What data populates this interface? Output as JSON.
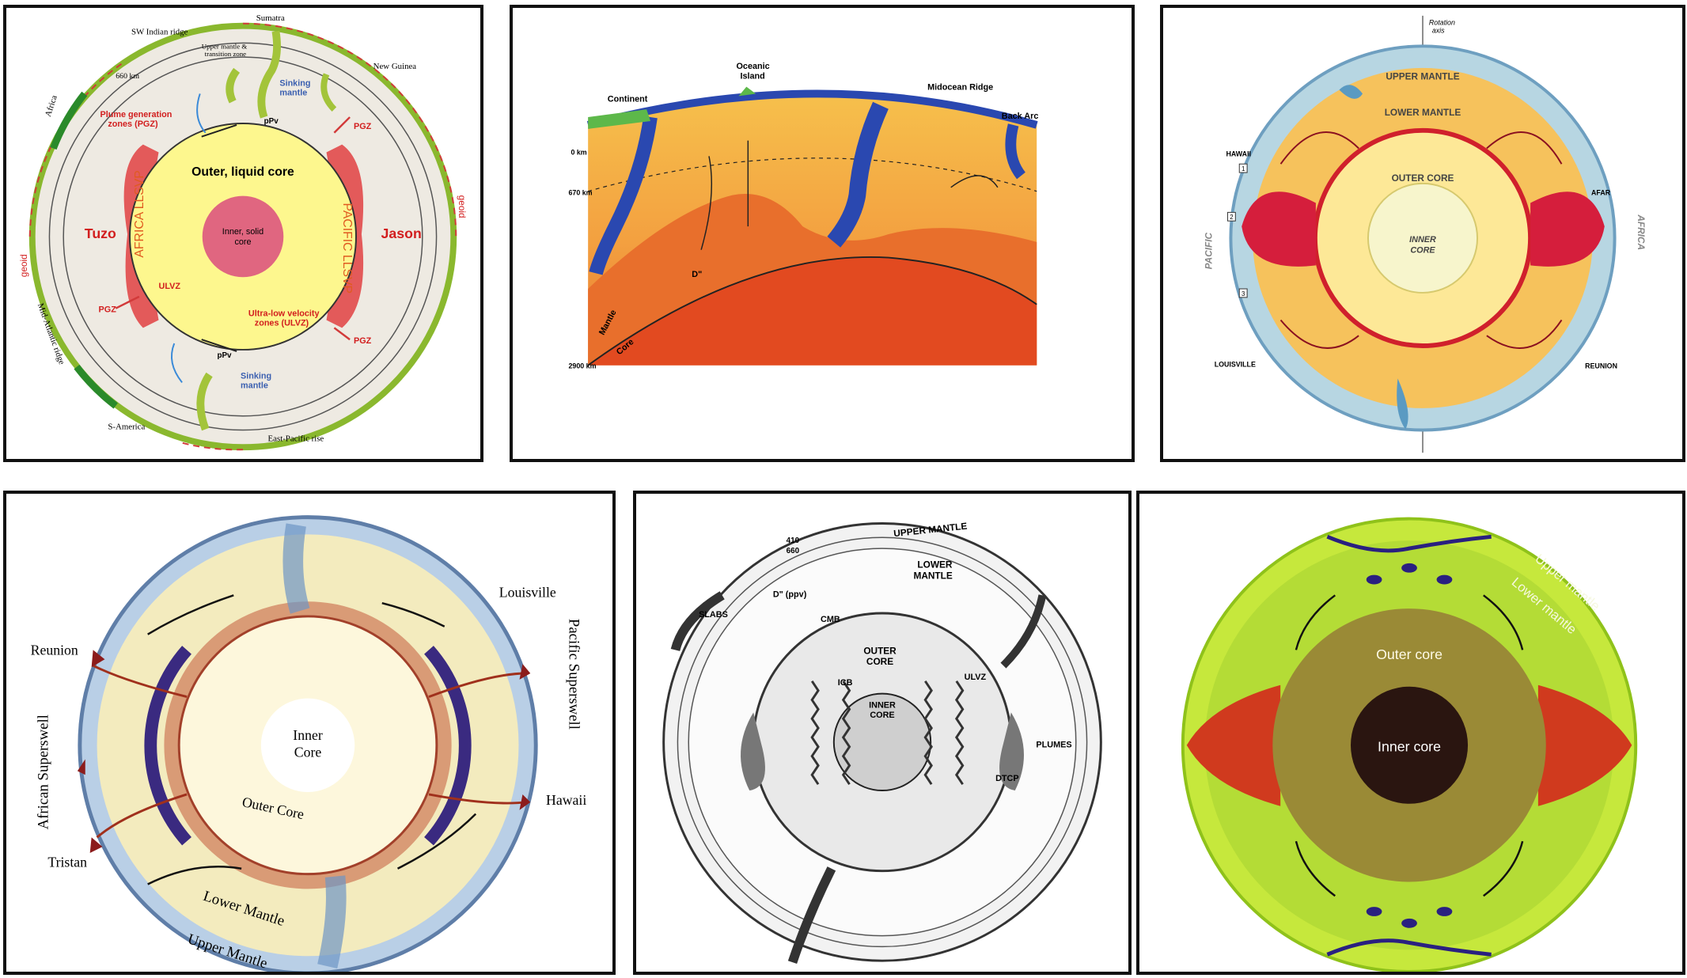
{
  "panels": {
    "p1": {
      "places": [
        "SW Indian ridge",
        "Sumatra",
        "New Guinea",
        "Africa",
        "Mid-Atlantic ridge",
        "S-America",
        "East-Pacific rise"
      ],
      "upper_mantle": "Upper mantle &",
      "transition_zone": "transition zone",
      "depth_660": "660 km",
      "sinking_mantle": "Sinking",
      "sinking_mantle_2": "mantle",
      "pgz_title_1": "Plume generation",
      "pgz_title_2": "zones (PGZ)",
      "pgz": "PGZ",
      "ppv": "pPv",
      "outer_core": "Outer, liquid core",
      "inner_core_1": "Inner, solid",
      "inner_core_2": "core",
      "africa_llsvp": "AFRICA LLSVP",
      "pacific_llsvp": "PACIFIC LLSVP",
      "tuzo": "Tuzo",
      "jason": "Jason",
      "ulvz": "ULVZ",
      "ulvz_title_1": "Ultra-low velocity",
      "ulvz_title_2": "zones (ULVZ)",
      "geoid": "geoid"
    },
    "p2": {
      "continent": "Continent",
      "oceanic_island_1": "Oceanic",
      "oceanic_island_2": "Island",
      "midocean_ridge": "Midocean Ridge",
      "back_arc": "Back Arc",
      "d0": "0 km",
      "d670": "670 km",
      "d2900": "2900 km",
      "d_double_prime": "D\"",
      "mantle": "Mantle",
      "core": "Core"
    },
    "p3": {
      "rotation_1": "Rotation",
      "rotation_2": "axis",
      "upper_mantle": "UPPER MANTLE",
      "lower_mantle": "LOWER MANTLE",
      "outer_core": "OUTER CORE",
      "inner_core_1": "INNER",
      "inner_core_2": "CORE",
      "hawaii": "HAWAII",
      "afar": "AFAR",
      "louisville": "LOUISVILLE",
      "reunion": "REUNION",
      "pacific": "PACIFIC",
      "africa": "AFRICA",
      "n1": "1",
      "n2": "2",
      "n3": "3"
    },
    "p4": {
      "louisville": "Louisville",
      "reunion": "Reunion",
      "pacific_superswell": "Pacific Superswell",
      "african_superswell": "African Superswell",
      "inner_core_1": "Inner",
      "inner_core_2": "Core",
      "outer_core": "Outer Core",
      "hawaii": "Hawaii",
      "tristan": "Tristan",
      "lower_mantle": "Lower Mantle",
      "upper_mantle": "Upper Mantle"
    },
    "p5": {
      "upper_mantle": "UPPER MANTLE",
      "d410": "410",
      "d660": "660",
      "lower_mantle_1": "LOWER",
      "lower_mantle_2": "MANTLE",
      "d_ppv": "D\" (ppv)",
      "slabs": "SLABS",
      "cmb": "CMB",
      "outer_core_1": "OUTER",
      "outer_core_2": "CORE",
      "icb": "ICB",
      "inner_core_1": "INNER",
      "inner_core_2": "CORE",
      "ulvz": "ULVZ",
      "plumes": "PLUMES",
      "dtcp": "DTCP"
    },
    "p6": {
      "upper_mantle": "Upper mantle",
      "lower_mantle": "Lower mantle",
      "outer_core": "Outer core",
      "inner_core": "Inner core"
    }
  }
}
